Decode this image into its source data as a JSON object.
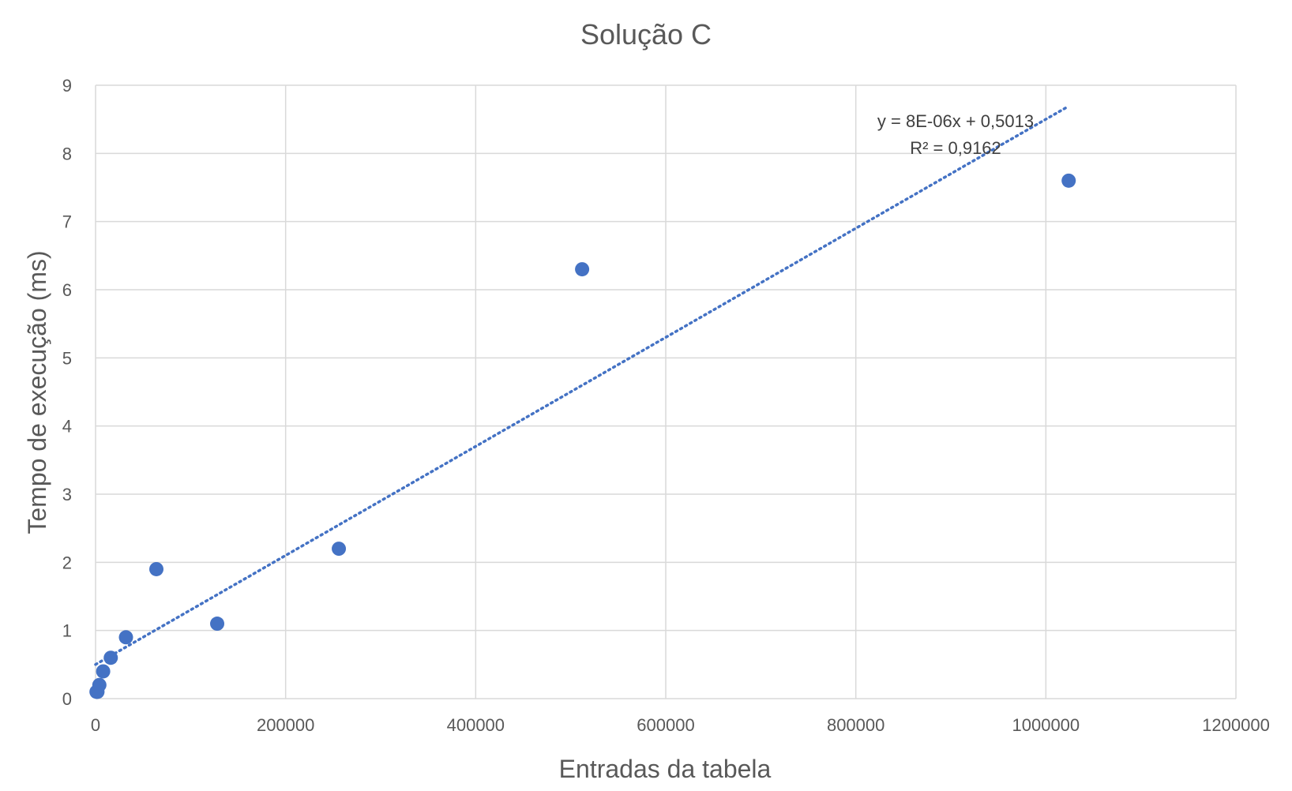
{
  "chart_data": {
    "type": "scatter",
    "title": "Solução C",
    "xlabel": "Entradas da tabela",
    "ylabel": "Tempo de execução (ms)",
    "xlim": [
      0,
      1200000
    ],
    "ylim": [
      0,
      9
    ],
    "xticks": [
      0,
      200000,
      400000,
      600000,
      800000,
      1000000,
      1200000
    ],
    "yticks": [
      0,
      1,
      2,
      3,
      4,
      5,
      6,
      7,
      8,
      9
    ],
    "xtick_labels": [
      "0",
      "200000",
      "400000",
      "600000",
      "800000",
      "1000000",
      "1200000"
    ],
    "ytick_labels": [
      "0",
      "1",
      "2",
      "3",
      "4",
      "5",
      "6",
      "7",
      "8",
      "9"
    ],
    "grid": true,
    "series": [
      {
        "color": "#4472C4",
        "x": [
          1000,
          2000,
          4000,
          8000,
          16000,
          32000,
          64000,
          128000,
          256000,
          512000,
          1024000
        ],
        "y": [
          0.1,
          0.1,
          0.2,
          0.4,
          0.6,
          0.9,
          1.9,
          1.1,
          2.2,
          6.3,
          7.6
        ]
      }
    ],
    "trendline": {
      "type": "linear",
      "slope": 8e-06,
      "intercept": 0.5013,
      "x_range": [
        0,
        1024000
      ],
      "style": "dotted",
      "color": "#4472C4",
      "equation_label": "y = 8E-06x + 0,5013",
      "r2_label": "R² = 0,9162"
    }
  }
}
